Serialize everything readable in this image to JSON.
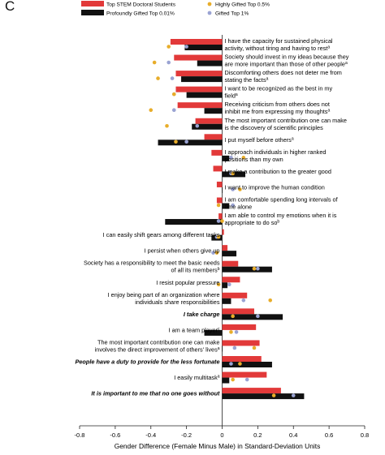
{
  "panel_label": "C",
  "chart_data": {
    "type": "bar",
    "orientation": "horizontal",
    "xlabel": "Gender Difference (Female Minus Male) in Standard-Deviation Units",
    "xlim": [
      -0.8,
      0.8
    ],
    "xticks": [
      "-0.8",
      "-0.6",
      "-0.4",
      "-0.2",
      "0",
      "0.2",
      "0.4",
      "0.6",
      "0.8"
    ],
    "legend": {
      "placement": "top",
      "bars": [
        {
          "name": "Top STEM Doctoral Students",
          "color": "#e23939"
        },
        {
          "name": "Profoundly Gifted Top 0.01%",
          "color": "#111111"
        }
      ],
      "dots": [
        {
          "name": "Highly Gifted Top 0.5%",
          "color": "#e8ad2a"
        },
        {
          "name": "Gifted Top 1%",
          "color": "#9aa3d3"
        }
      ]
    },
    "items": [
      {
        "label": "I have the capacity for sustained physical activity, without tiring and having to rest",
        "sup": "a",
        "bold": false,
        "stem": -0.29,
        "profound": -0.21,
        "highly": -0.3,
        "gifted": -0.2
      },
      {
        "label": "Society should invest in my ideas because they are more important than those of other people",
        "sup": "a",
        "bold": false,
        "stem": -0.27,
        "profound": -0.14,
        "highly": -0.38,
        "gifted": -0.3
      },
      {
        "label": "Discomforting others does not deter me from stating the facts",
        "sup": "a",
        "bold": false,
        "stem": -0.26,
        "profound": -0.23,
        "highly": -0.36,
        "gifted": -0.28
      },
      {
        "label": "I want to be recognized as the best in my field",
        "sup": "a",
        "bold": false,
        "stem": -0.26,
        "profound": -0.2,
        "highly": -0.27,
        "gifted": -0.27
      },
      {
        "label": "Receiving criticism from others does not inhibit me from expressing my thoughts",
        "sup": "a",
        "bold": false,
        "stem": -0.25,
        "profound": -0.1,
        "highly": -0.4,
        "gifted": -0.27
      },
      {
        "label": "The most important contribution one can make is the discovery of scientific principles",
        "sup": "",
        "bold": false,
        "stem": -0.15,
        "profound": -0.17,
        "highly": -0.31,
        "gifted": -0.14
      },
      {
        "label": "I put myself before others",
        "sup": "a",
        "bold": false,
        "stem": -0.1,
        "profound": -0.36,
        "highly": -0.26,
        "gifted": -0.2
      },
      {
        "label": "I approach individuals in higher ranked positions than my own",
        "sup": "",
        "bold": false,
        "stem": -0.06,
        "profound": 0.04,
        "highly": 0.12,
        "gifted": 0.05
      },
      {
        "label": "I make a contribution to the greater good",
        "sup": "",
        "bold": false,
        "stem": -0.05,
        "profound": 0.13,
        "highly": 0.06,
        "gifted": 0.05
      },
      {
        "label": "I want to improve the human condition",
        "sup": "",
        "bold": false,
        "stem": -0.03,
        "profound": 0.0,
        "highly": 0.1,
        "gifted": 0.06
      },
      {
        "label": "I am comfortable spending long intervals of time alone",
        "sup": "",
        "bold": false,
        "stem": -0.03,
        "profound": 0.04,
        "highly": -0.02,
        "gifted": 0.06
      },
      {
        "label": "I am able to control my emotions when it is appropriate to do so",
        "sup": "b",
        "bold": false,
        "stem": -0.02,
        "profound": -0.32,
        "highly": 0.0,
        "gifted": -0.02
      },
      {
        "label": "I can easily shift gears among different tasks",
        "sup": "",
        "bold": false,
        "stem": 0.01,
        "profound": -0.06,
        "highly": -0.02,
        "gifted": -0.03
      },
      {
        "label": "I persist when others give up",
        "sup": "",
        "bold": false,
        "stem": 0.03,
        "profound": 0.08,
        "highly": -0.03,
        "gifted": -0.05
      },
      {
        "label": "Society has a responsibility to meet the basic needs of all its members",
        "sup": "b",
        "bold": false,
        "stem": 0.09,
        "profound": 0.28,
        "highly": 0.18,
        "gifted": 0.2
      },
      {
        "label": "I resist popular pressure",
        "sup": "",
        "bold": false,
        "stem": 0.1,
        "profound": 0.03,
        "highly": -0.02,
        "gifted": 0.04
      },
      {
        "label": "I enjoy being part of an organization where individuals share responsibilities",
        "sup": "",
        "bold": false,
        "stem": 0.14,
        "profound": 0.05,
        "highly": 0.27,
        "gifted": 0.12
      },
      {
        "label": "I take charge",
        "sup": "",
        "bold": true,
        "stem": 0.18,
        "profound": 0.34,
        "highly": 0.06,
        "gifted": 0.2
      },
      {
        "label": "I am a team player",
        "sup": "c",
        "bold": false,
        "stem": 0.19,
        "profound": -0.1,
        "highly": 0.05,
        "gifted": 0.08
      },
      {
        "label": "The most important contribution one can make involves the direct improvement of others' lives",
        "sup": "a",
        "bold": false,
        "stem": 0.21,
        "profound": 0.0,
        "highly": 0.18,
        "gifted": 0.07
      },
      {
        "label": "People have a duty to provide for the less fortunate",
        "sup": "",
        "bold": true,
        "stem": 0.22,
        "profound": 0.28,
        "highly": 0.1,
        "gifted": 0.05
      },
      {
        "label": "I easily multitask",
        "sup": "a",
        "bold": false,
        "stem": 0.25,
        "profound": 0.04,
        "highly": 0.06,
        "gifted": 0.14
      },
      {
        "label": "It is important to me that no one goes without",
        "sup": "",
        "bold": true,
        "stem": 0.33,
        "profound": 0.46,
        "highly": 0.29,
        "gifted": 0.4
      }
    ]
  }
}
